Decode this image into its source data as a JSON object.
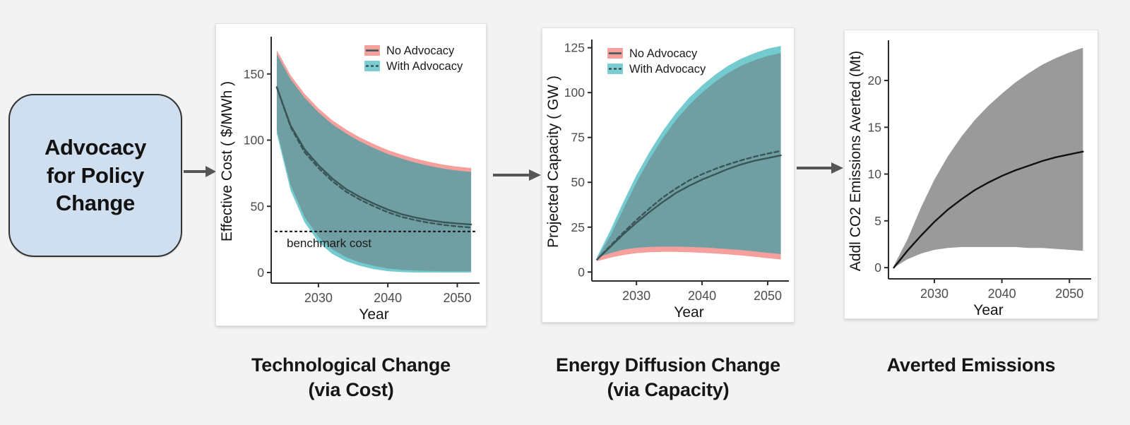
{
  "flow_box": {
    "text": "Advocacy\nfor Policy\nChange"
  },
  "captions": [
    "Technological Change\n(via Cost)",
    "Energy Diffusion Change\n(via Capacity)",
    "Averted Emissions"
  ],
  "colors": {
    "background": "#F4F3F4",
    "panel_border": "#E2E2E2",
    "box_fill": "#CFDFF0",
    "box_border": "#333333",
    "arrow": "#565656",
    "salmon_band": "#F5A09C",
    "teal_band_overlay": "rgba(0,158,168,0.55)",
    "teal_legend_swatch": "#7CCDD3",
    "gray_band": "#9A9A9A",
    "series_line": "#3A5558",
    "black_line": "#111111",
    "tick_label": "#4D4D4D",
    "axis_line": "#2B2B2B"
  },
  "chart_data": [
    {
      "type": "area",
      "xlabel": "Year",
      "ylabel": "Effective Cost ( $/MWh )",
      "xlim": [
        2023.2,
        2052.8
      ],
      "ylim": [
        -8,
        176
      ],
      "xticks": [
        2030,
        2040,
        2050
      ],
      "yticks": [
        0,
        50,
        100,
        150
      ],
      "legend": [
        "No Advocacy",
        "With Advocacy"
      ],
      "x": [
        2024,
        2026,
        2028,
        2030,
        2032,
        2034,
        2036,
        2038,
        2040,
        2042,
        2044,
        2046,
        2048,
        2050,
        2052
      ],
      "ribbons": [
        {
          "name": "no-advocacy-ci",
          "fill": "salmon_band",
          "upper": [
            168,
            149,
            135,
            124,
            115,
            108,
            102,
            97,
            92.5,
            89,
            86,
            83.5,
            81.5,
            80,
            79
          ],
          "lower": [
            108,
            66,
            42,
            27,
            17.5,
            11.5,
            7.5,
            5,
            3,
            2,
            1.5,
            1.2,
            1,
            1,
            1
          ]
        },
        {
          "name": "with-advocacy-ci",
          "fill": "teal_band_overlay",
          "upper": [
            165,
            146,
            132,
            121,
            112,
            105,
            99,
            94,
            89.5,
            86,
            83,
            80.5,
            78.5,
            77,
            76
          ],
          "lower": [
            105,
            62,
            38,
            23,
            14,
            8.5,
            5,
            2.5,
            1,
            0.3,
            0,
            0,
            0,
            0,
            0
          ]
        }
      ],
      "lines": [
        {
          "name": "no-advocacy-mean",
          "dash": false,
          "color": "series_line",
          "values": [
            140,
            111,
            93,
            81,
            71,
            63,
            57,
            52,
            47.5,
            44,
            41.5,
            39.5,
            38,
            37,
            36.3
          ]
        },
        {
          "name": "with-advocacy-mean",
          "dash": true,
          "color": "series_line",
          "values": [
            140,
            110,
            91,
            79,
            69,
            61,
            55,
            50,
            45.5,
            42,
            39.5,
            37.5,
            36,
            34.8,
            34
          ]
        }
      ],
      "hline": {
        "value": 31,
        "label": "benchmark cost"
      }
    },
    {
      "type": "area",
      "xlabel": "Year",
      "ylabel": "Projected Capacity ( GW )",
      "xlim": [
        2023.2,
        2052.8
      ],
      "ylim": [
        -5,
        128
      ],
      "xticks": [
        2030,
        2040,
        2050
      ],
      "yticks": [
        0,
        25,
        50,
        75,
        100,
        125
      ],
      "legend": [
        "No Advocacy",
        "With Advocacy"
      ],
      "x": [
        2024,
        2026,
        2028,
        2030,
        2032,
        2034,
        2036,
        2038,
        2040,
        2042,
        2044,
        2046,
        2048,
        2050,
        2052
      ],
      "ribbons": [
        {
          "name": "no-advocacy-ci",
          "fill": "salmon_band",
          "upper": [
            7.5,
            20,
            35,
            50,
            63,
            74.5,
            84.5,
            93,
            100,
            106,
            111,
            115,
            118,
            120.5,
            122
          ],
          "lower": [
            6,
            8,
            9.5,
            10.5,
            11,
            11.2,
            11.2,
            11,
            10.7,
            10.3,
            9.8,
            9.2,
            8.5,
            7.7,
            7
          ]
        },
        {
          "name": "with-advocacy-ci",
          "fill": "teal_band_overlay",
          "upper": [
            8.5,
            23,
            39,
            54,
            67,
            78.5,
            88.5,
            97,
            104,
            110,
            115,
            119,
            122,
            124.5,
            126
          ],
          "lower": [
            8,
            10.5,
            12.5,
            13.5,
            14,
            14.2,
            14.2,
            14,
            13.7,
            13.3,
            12.8,
            12.2,
            11.5,
            10.7,
            10
          ]
        }
      ],
      "lines": [
        {
          "name": "no-advocacy-mean",
          "dash": false,
          "color": "series_line",
          "values": [
            7,
            14,
            21,
            27.5,
            33.5,
            39,
            44,
            48,
            51.5,
            54.5,
            57.5,
            60,
            62,
            63.5,
            65
          ]
        },
        {
          "name": "with-advocacy-mean",
          "dash": true,
          "color": "series_line",
          "values": [
            7,
            14.5,
            22,
            29,
            35.5,
            41.5,
            46.5,
            51,
            54.5,
            57.5,
            60,
            62.3,
            64.3,
            66,
            67.5
          ]
        }
      ]
    },
    {
      "type": "area",
      "xlabel": "Year",
      "ylabel": "Addl CO2 Emissions Averted (Mt)",
      "xlim": [
        2023.2,
        2052.8
      ],
      "ylim": [
        -1.2,
        24
      ],
      "xticks": [
        2030,
        2040,
        2050
      ],
      "yticks": [
        0,
        5,
        10,
        15,
        20
      ],
      "x": [
        2024,
        2026,
        2028,
        2030,
        2032,
        2034,
        2036,
        2038,
        2040,
        2042,
        2044,
        2046,
        2048,
        2050,
        2052
      ],
      "ribbons": [
        {
          "name": "averted-ci",
          "fill": "gray_band",
          "upper": [
            0.2,
            3,
            6.4,
            9.4,
            11.9,
            14,
            15.8,
            17.3,
            18.6,
            19.8,
            20.8,
            21.7,
            22.4,
            23,
            23.5
          ],
          "lower": [
            0,
            0.9,
            1.5,
            1.9,
            2.1,
            2.2,
            2.2,
            2.2,
            2.2,
            2.2,
            2.1,
            2.1,
            2,
            1.9,
            1.8
          ]
        }
      ],
      "lines": [
        {
          "name": "averted-mean",
          "dash": false,
          "color": "black_line",
          "values": [
            0,
            1.8,
            3.4,
            4.9,
            6.2,
            7.3,
            8.3,
            9.1,
            9.8,
            10.4,
            10.9,
            11.4,
            11.8,
            12.1,
            12.4
          ]
        }
      ]
    }
  ]
}
